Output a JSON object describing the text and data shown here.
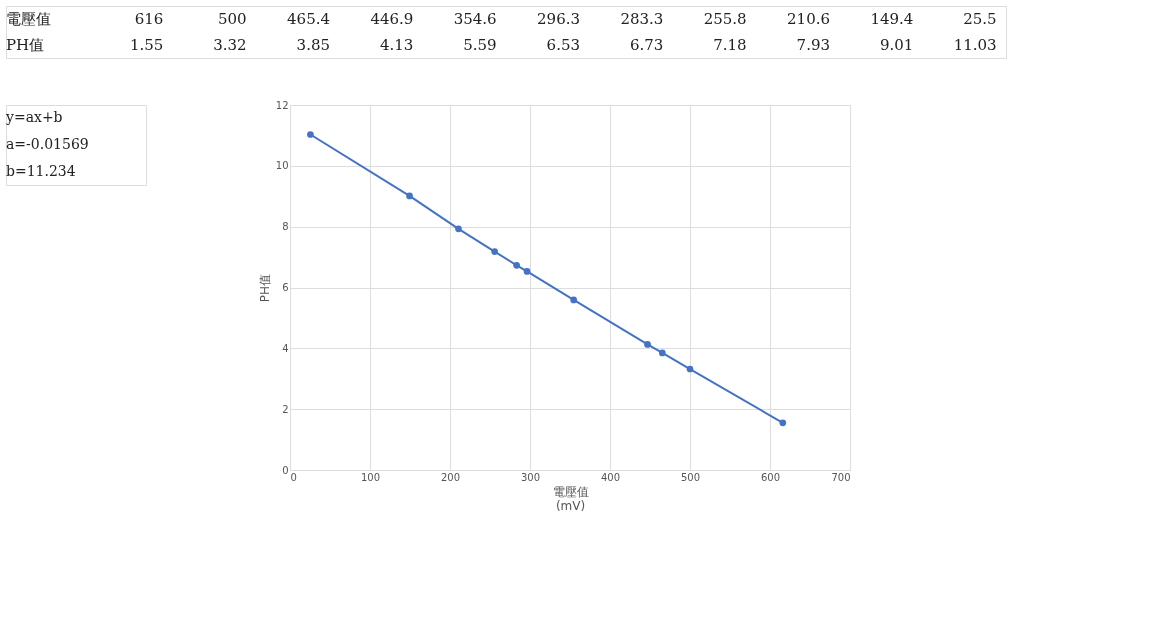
{
  "chart_data": [
    {
      "type": "other",
      "annotations": [
        "電壓值",
        "616",
        "500",
        "465.4",
        "446.9",
        "354.6",
        "296.3",
        "283.3",
        "255.8",
        "210.6",
        "149.4",
        "25.5",
        "PH值",
        "1.55",
        "3.32",
        "3.85",
        "4.13",
        "5.59",
        "6.53",
        "6.73",
        "7.18",
        "7.93",
        "9.01",
        "11.03"
      ]
    },
    {
      "type": "line",
      "x": [
        616,
        500,
        465.4,
        446.9,
        354.6,
        296.3,
        283.3,
        255.8,
        210.6,
        149.4,
        25.5
      ],
      "values": [
        1.55,
        3.32,
        3.85,
        4.13,
        5.59,
        6.53,
        6.73,
        7.18,
        7.93,
        9.01,
        11.03
      ],
      "color": "#4472c4",
      "marker": "circle",
      "line_style": "solid",
      "xlabel": "電壓值\n(mV)",
      "ylabel": "PH值",
      "xlim": [
        0,
        700
      ],
      "xticks": [
        0,
        100,
        200,
        300,
        400,
        500,
        600,
        700
      ],
      "ylim": [
        0,
        12
      ],
      "yticks": [
        0,
        2,
        4,
        6,
        8,
        10,
        12
      ],
      "grid": true,
      "annotations": [
        "y=ax+b",
        "a=-0.01569",
        "b=11.234"
      ]
    }
  ]
}
